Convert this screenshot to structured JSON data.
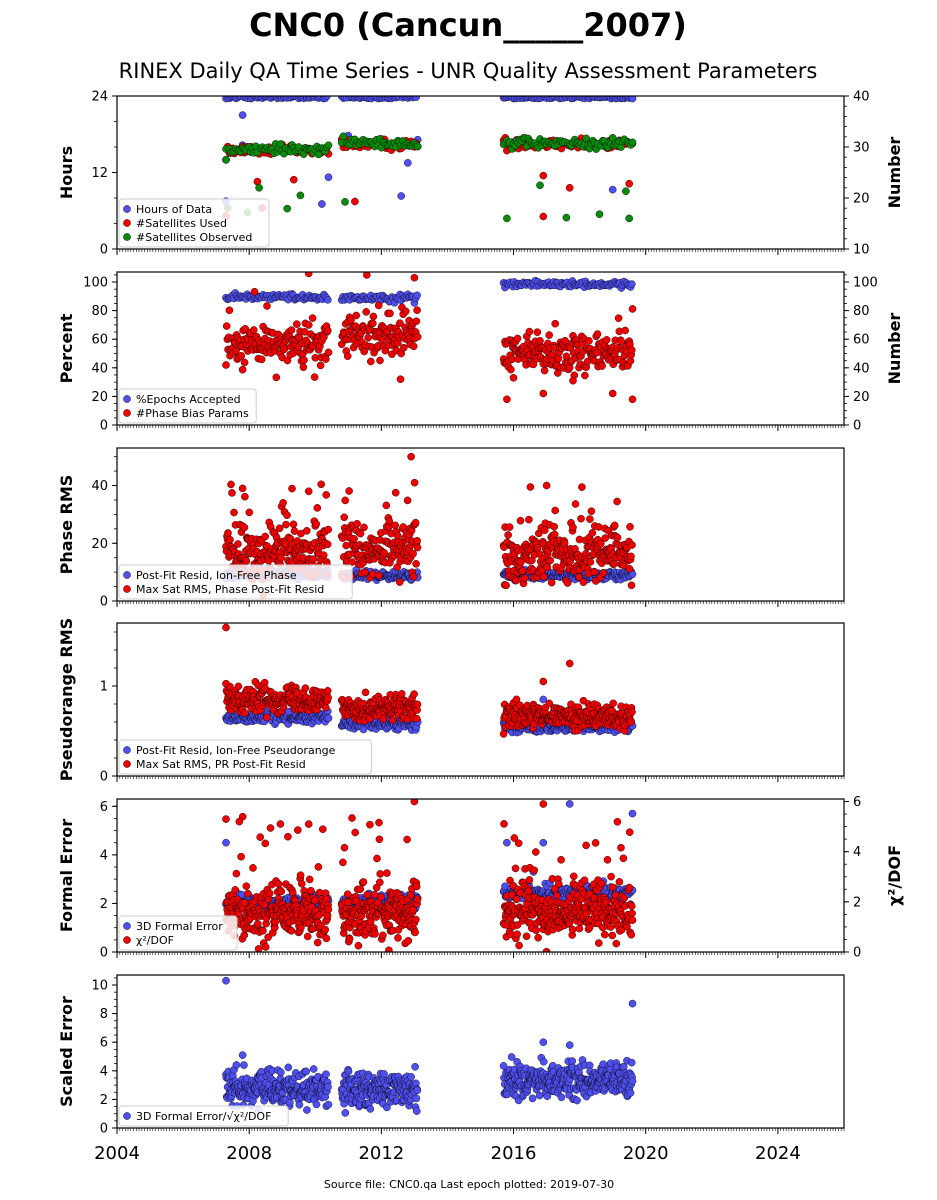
{
  "figure": {
    "title": "CNC0 (Cancun_____2007)",
    "subtitle": "RINEX Daily QA Time Series - UNR Quality Assessment Parameters",
    "footer": "Source file: CNC0.qa Last epoch plotted: 2019-07-30"
  },
  "colors": {
    "blue": "#4f4ff0",
    "red": "#ee0000",
    "green": "#0a8a0a",
    "edge": "#000000"
  },
  "chart_data": [
    {
      "type": "scatter",
      "ylabel": "Hours",
      "y2label": "Number",
      "xlim": [
        2004,
        2026
      ],
      "ylim": [
        0,
        24
      ],
      "y2lim": [
        10,
        40
      ],
      "yticks": [
        "0",
        "12",
        "24"
      ],
      "y2ticks": [
        "10",
        "20",
        "30",
        "40"
      ],
      "legend_loc": "lower left",
      "series": [
        {
          "name": "Hours of Data",
          "color": "blue",
          "axis": "left",
          "values_desc": "mostly 24 h, occasional drops to ~7-21"
        },
        {
          "name": "#Satellites Used",
          "color": "red",
          "axis": "right",
          "values_desc": "~29-30, occasional lows ~16-25"
        },
        {
          "name": "#Satellites Observed",
          "color": "green",
          "axis": "right",
          "values_desc": "~28-31, occasional lows ~16-24"
        }
      ]
    },
    {
      "type": "scatter",
      "ylabel": "Percent",
      "y2label": "Number",
      "xlim": [
        2004,
        2026
      ],
      "ylim": [
        0,
        107
      ],
      "y2lim": [
        0,
        107
      ],
      "yticks": [
        "0",
        "20",
        "40",
        "60",
        "80",
        "100"
      ],
      "y2ticks": [
        "0",
        "20",
        "40",
        "60",
        "80",
        "100"
      ],
      "legend_loc": "lower left",
      "series": [
        {
          "name": "%Epochs Accepted",
          "color": "blue",
          "axis": "left",
          "values_desc": "~90 (2007-2013), ~99 (2015.8-2019.6)"
        },
        {
          "name": "#Phase Bias Params",
          "color": "red",
          "axis": "right",
          "values_desc": "~45-75 with outliers up to ~105"
        }
      ]
    },
    {
      "type": "scatter",
      "ylabel": "Phase RMS",
      "xlim": [
        2004,
        2026
      ],
      "ylim": [
        0,
        53
      ],
      "yticks": [
        "0",
        "20",
        "40"
      ],
      "legend_loc": "lower left",
      "series": [
        {
          "name": "Post-Fit Resid, Ion-Free Phase",
          "color": "blue",
          "values_desc": "~8-10"
        },
        {
          "name": "Max Sat RMS, Phase Post-Fit Resid",
          "color": "red",
          "values_desc": "~10-30, outliers to 50"
        }
      ]
    },
    {
      "type": "scatter",
      "ylabel": "Pseudorange RMS",
      "xlim": [
        2004,
        2026
      ],
      "ylim": [
        0,
        1.7
      ],
      "yticks": [
        "0",
        "1"
      ],
      "legend_loc": "lower left",
      "series": [
        {
          "name": "Post-Fit Resid, Ion-Free Pseudorange",
          "color": "blue",
          "values_desc": "~0.5-0.7"
        },
        {
          "name": "Max Sat RMS, PR Post-Fit Resid",
          "color": "red",
          "values_desc": "~0.6-1.0, outlier 1.65"
        }
      ]
    },
    {
      "type": "scatter",
      "ylabel": "Formal Error",
      "y2label": "χ²/DOF",
      "xlim": [
        2004,
        2026
      ],
      "ylim": [
        0,
        6.3
      ],
      "y2lim": [
        0,
        6.1
      ],
      "yticks": [
        "0",
        "2",
        "4",
        "6"
      ],
      "y2ticks": [
        "0",
        "2",
        "4",
        "6"
      ],
      "legend_loc": "lower left",
      "series": [
        {
          "name": "3D Formal Error",
          "color": "blue",
          "axis": "left",
          "values_desc": "~2.0-2.6, outliers to 6"
        },
        {
          "name": "χ²/DOF",
          "color": "red",
          "axis": "right",
          "values_desc": "~1-3, outliers to 6"
        }
      ]
    },
    {
      "type": "scatter",
      "ylabel": "Scaled Error",
      "xlim": [
        2004,
        2026
      ],
      "ylim": [
        0,
        10.7
      ],
      "yticks": [
        "0",
        "2",
        "4",
        "6",
        "8",
        "10"
      ],
      "legend_loc": "lower left",
      "series": [
        {
          "name": "3D Formal Error/√χ²/DOF",
          "color": "blue",
          "values_desc": "~2-5, outliers 8.7 and 10.3"
        }
      ]
    }
  ],
  "xaxis": {
    "ticks": [
      "2004",
      "2008",
      "2012",
      "2016",
      "2020",
      "2024"
    ],
    "tick_values": [
      2004,
      2008,
      2012,
      2016,
      2020,
      2024
    ]
  },
  "data_spans": [
    [
      2007.3,
      2010.4
    ],
    [
      2010.8,
      2013.1
    ],
    [
      2015.7,
      2019.6
    ]
  ]
}
